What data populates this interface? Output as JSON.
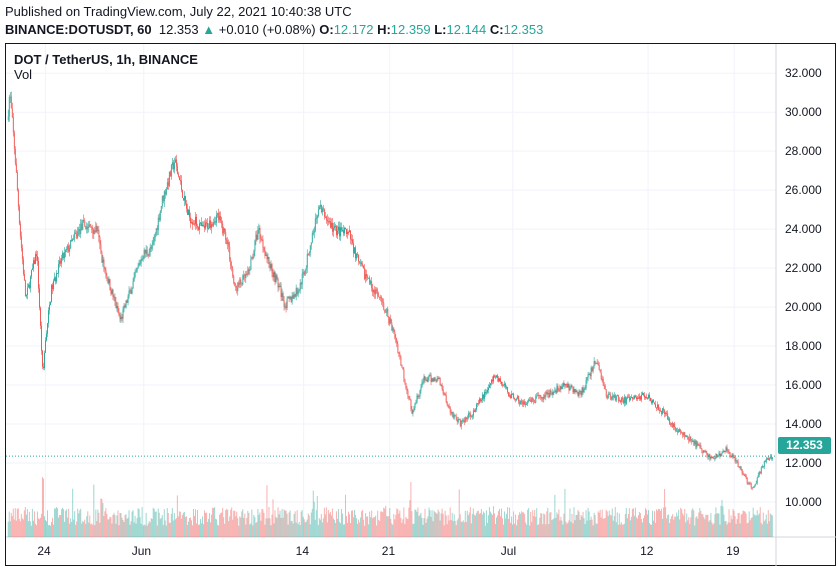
{
  "header": {
    "published": "Published on TradingView.com, July 22, 2021 10:40:38 UTC",
    "symbol": "BINANCE:DOTUSDT, 60",
    "last": "12.353",
    "change": "+0.010 (+0.08%)",
    "o_label": "O:",
    "o": "12.172",
    "h_label": "H:",
    "h": "12.359",
    "l_label": "L:",
    "l": "12.144",
    "c_label": "C:",
    "c": "12.353"
  },
  "legend": {
    "title": "DOT / TetherUS, 1h, BINANCE",
    "vol": "Vol"
  },
  "colors": {
    "up": "#26a69a",
    "down": "#ef5350",
    "grid": "#f0f3fa"
  },
  "chart_data": {
    "type": "candlestick",
    "title": "DOT / TetherUS, 1h, BINANCE",
    "ylim": [
      8.2,
      33.5
    ],
    "y_ticks": [
      "32.000",
      "30.000",
      "28.000",
      "26.000",
      "24.000",
      "22.000",
      "20.000",
      "18.000",
      "16.000",
      "14.000",
      "12.000",
      "10.000"
    ],
    "y_tick_values": [
      32,
      30,
      28,
      26,
      24,
      22,
      20,
      18,
      16,
      14,
      12,
      10
    ],
    "x_ticks": [
      {
        "label": "24",
        "day": 0
      },
      {
        "label": "Jun",
        "day": 8
      },
      {
        "label": "14",
        "day": 21
      },
      {
        "label": "21",
        "day": 28
      },
      {
        "label": "Jul",
        "day": 38
      },
      {
        "label": "12",
        "day": 49
      },
      {
        "label": "19",
        "day": 56
      }
    ],
    "xlim_days": [
      -3.2,
      59.4
    ],
    "last_price": 12.353,
    "last_price_label": "12.353",
    "price_path": [
      [
        -3.1,
        29.6
      ],
      [
        -2.9,
        31
      ],
      [
        -2.5,
        28
      ],
      [
        -2,
        23.4
      ],
      [
        -1.6,
        20.4
      ],
      [
        -0.7,
        22.9
      ],
      [
        -0.2,
        16.3
      ],
      [
        0,
        18.3
      ],
      [
        0.5,
        20.9
      ],
      [
        1.3,
        22.4
      ],
      [
        3,
        24.2
      ],
      [
        4.2,
        24
      ],
      [
        4.6,
        22.4
      ],
      [
        6.1,
        19.3
      ],
      [
        7,
        21
      ],
      [
        7.9,
        22.7
      ],
      [
        8.7,
        23
      ],
      [
        9.5,
        25.5
      ],
      [
        10.5,
        27.5
      ],
      [
        11.6,
        24.7
      ],
      [
        12.8,
        24
      ],
      [
        14,
        24.7
      ],
      [
        14.8,
        23.4
      ],
      [
        15.4,
        20.9
      ],
      [
        16.5,
        21.7
      ],
      [
        17.3,
        24
      ],
      [
        18.1,
        22.4
      ],
      [
        18.9,
        21.2
      ],
      [
        19.5,
        20.1
      ],
      [
        20.6,
        20.9
      ],
      [
        21.2,
        22.2
      ],
      [
        22.2,
        25.2
      ],
      [
        23.4,
        24
      ],
      [
        24.7,
        23.7
      ],
      [
        25.5,
        22.2
      ],
      [
        26.7,
        20.9
      ],
      [
        27.7,
        19.8
      ],
      [
        28.5,
        18.3
      ],
      [
        29.2,
        16.3
      ],
      [
        29.8,
        14.7
      ],
      [
        30.8,
        16.3
      ],
      [
        32,
        16.3
      ],
      [
        32.9,
        14.7
      ],
      [
        33.7,
        14
      ],
      [
        34.9,
        14.7
      ],
      [
        36.6,
        16.5
      ],
      [
        37.8,
        15.5
      ],
      [
        39,
        15
      ],
      [
        40.7,
        15.5
      ],
      [
        42.3,
        16
      ],
      [
        43.5,
        15.5
      ],
      [
        44.8,
        17.3
      ],
      [
        45.6,
        15.5
      ],
      [
        47.2,
        15.2
      ],
      [
        48.9,
        15.5
      ],
      [
        50.1,
        14.7
      ],
      [
        51.3,
        13.7
      ],
      [
        53,
        12.9
      ],
      [
        54.2,
        12.2
      ],
      [
        55.4,
        12.7
      ],
      [
        56.6,
        11.6
      ],
      [
        57.5,
        10.6
      ],
      [
        58.3,
        11.9
      ],
      [
        59.1,
        12.35
      ]
    ],
    "volume_spikes": [
      [
        -0.2,
        1
      ],
      [
        0.9,
        0.6
      ],
      [
        4.6,
        0.55
      ],
      [
        21.8,
        0.7
      ],
      [
        29.7,
        0.75
      ],
      [
        27.6,
        0.45
      ],
      [
        55,
        0.5
      ],
      [
        58,
        0.45
      ]
    ]
  }
}
